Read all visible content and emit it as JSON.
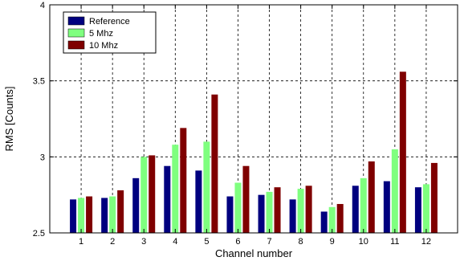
{
  "chart_data": {
    "type": "bar",
    "title": "",
    "xlabel": "Channel number",
    "ylabel": "RMS [Counts]",
    "ylim": [
      2.5,
      4
    ],
    "yticks": [
      "2.5",
      "3",
      "3.5",
      "4"
    ],
    "grid": true,
    "legend_position": "top-left",
    "categories": [
      "1",
      "2",
      "3",
      "4",
      "5",
      "6",
      "7",
      "8",
      "9",
      "10",
      "11",
      "12"
    ],
    "series": [
      {
        "name": "Reference",
        "color": "#00007f",
        "values": [
          2.72,
          2.73,
          2.86,
          2.94,
          2.91,
          2.74,
          2.75,
          2.72,
          2.64,
          2.81,
          2.84,
          2.8
        ]
      },
      {
        "name": "5 Mhz",
        "color": "#7fff7f",
        "values": [
          2.73,
          2.74,
          3.0,
          3.08,
          3.1,
          2.83,
          2.77,
          2.79,
          2.67,
          2.86,
          3.05,
          2.82
        ]
      },
      {
        "name": "10 Mhz",
        "color": "#7f0000",
        "values": [
          2.74,
          2.78,
          3.01,
          3.19,
          3.41,
          2.94,
          2.8,
          2.81,
          2.69,
          2.97,
          3.56,
          2.96
        ]
      }
    ]
  }
}
